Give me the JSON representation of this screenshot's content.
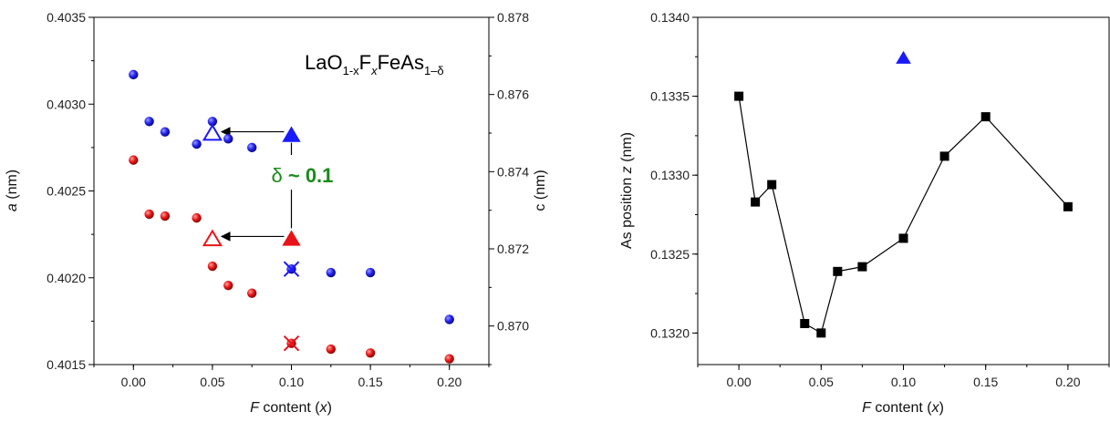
{
  "chart_data": [
    {
      "type": "scatter",
      "xlabel": {
        "italic": "F",
        "rest": " content (",
        "italic2": "x",
        "close": ")"
      },
      "ylabel_left": {
        "italic": "a",
        "rest": " (nm)",
        "color": "#1a1aff"
      },
      "ylabel_right": {
        "text": "c (nm)",
        "color": "#e8141b"
      },
      "xlim": [
        -0.025,
        0.225
      ],
      "ylim_left": [
        0.4015,
        0.4035
      ],
      "ylim_right": [
        0.869,
        0.878
      ],
      "x_ticks": [
        "0.00",
        "0.05",
        "0.10",
        "0.15",
        "0.20"
      ],
      "x_tick_values": [
        0.0,
        0.05,
        0.1,
        0.15,
        0.2
      ],
      "yleft_ticks": [
        "0.4015",
        "0.4020",
        "0.4025",
        "0.4030",
        "0.4035"
      ],
      "yleft_tick_values": [
        0.4015,
        0.402,
        0.4025,
        0.403,
        0.4035
      ],
      "yright_ticks": [
        "0.870",
        "0.872",
        "0.874",
        "0.876",
        "0.878"
      ],
      "yright_tick_values": [
        0.87,
        0.872,
        0.874,
        0.876,
        0.878
      ],
      "formula": {
        "base1": "LaO",
        "sub1": "1-x",
        "base2": "F",
        "sub2": "x",
        "base3": "FeAs",
        "sub3": "1–δ"
      },
      "delta_label": {
        "symbol": "δ",
        "value": " ~ 0.1",
        "color": "#1a8a1a"
      },
      "series": [
        {
          "axis": "left",
          "color": "#1a1aff",
          "x": [
            0.0,
            0.01,
            0.02,
            0.04,
            0.05,
            0.06,
            0.075,
            0.1,
            0.125,
            0.15,
            0.2
          ],
          "y": [
            0.40317,
            0.4029,
            0.40284,
            0.40277,
            0.4029,
            0.4028,
            0.40275,
            0.40205,
            0.40203,
            0.40203,
            0.40176
          ]
        },
        {
          "axis": "right",
          "color": "#e8141b",
          "x": [
            0.0,
            0.01,
            0.02,
            0.04,
            0.05,
            0.06,
            0.075,
            0.1,
            0.125,
            0.15,
            0.2
          ],
          "y": [
            0.8743,
            0.8729,
            0.87285,
            0.8728,
            0.87155,
            0.87105,
            0.87085,
            0.86955,
            0.8694,
            0.8693,
            0.86915
          ]
        }
      ],
      "markers": {
        "blue_filled_triangle": {
          "x": 0.1,
          "y": 0.40282,
          "axis": "left"
        },
        "blue_open_triangle": {
          "x": 0.05,
          "y": 0.40283,
          "axis": "left"
        },
        "red_filled_triangle": {
          "x": 0.1,
          "y": 0.87225,
          "axis": "right"
        },
        "red_open_triangle": {
          "x": 0.05,
          "y": 0.87225,
          "axis": "right"
        },
        "blue_cross": {
          "x": 0.1,
          "y": 0.40205,
          "axis": "left"
        },
        "red_cross": {
          "x": 0.1,
          "y": 0.86955,
          "axis": "right"
        }
      }
    },
    {
      "type": "line",
      "xlabel": {
        "italic": "F",
        "rest": " content (",
        "italic2": "x",
        "close": ")"
      },
      "ylabel": {
        "text": "As position ",
        "italic": "z",
        "rest": " (nm)"
      },
      "xlim": [
        -0.025,
        0.225
      ],
      "ylim": [
        0.1318,
        0.134
      ],
      "x_ticks": [
        "0.00",
        "0.05",
        "0.10",
        "0.15",
        "0.20"
      ],
      "x_tick_values": [
        0.0,
        0.05,
        0.1,
        0.15,
        0.2
      ],
      "y_ticks": [
        "0.1320",
        "0.1325",
        "0.1330",
        "0.1335",
        "0.1340"
      ],
      "y_tick_values": [
        0.132,
        0.1325,
        0.133,
        0.1335,
        0.134
      ],
      "series": [
        {
          "color": "#000000",
          "marker": "square",
          "x": [
            0.0,
            0.01,
            0.02,
            0.04,
            0.05,
            0.06,
            0.075,
            0.1,
            0.125,
            0.15,
            0.2
          ],
          "y": [
            0.1335,
            0.13283,
            0.13294,
            0.13206,
            0.132,
            0.13239,
            0.13242,
            0.1326,
            0.13312,
            0.13337,
            0.1328
          ]
        }
      ],
      "extra_point": {
        "x": 0.1,
        "y": 0.13374,
        "color": "#1a1aff",
        "marker": "triangle"
      }
    }
  ]
}
